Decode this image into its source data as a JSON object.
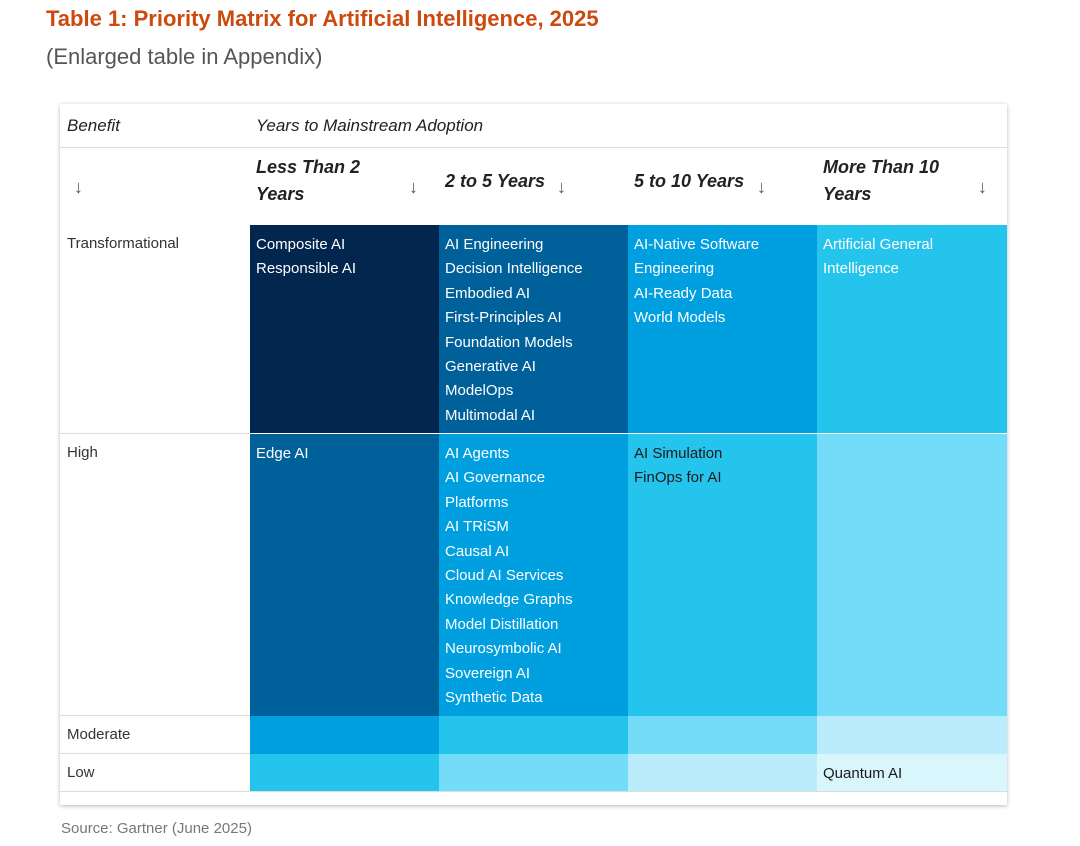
{
  "title": "Table 1: Priority Matrix for Artificial Intelligence, 2025",
  "subtitle": "(Enlarged table in Appendix)",
  "table": {
    "benefit_header": "Benefit",
    "years_header": "Years to Mainstream Adoption",
    "benefit_arrow": "↓",
    "columns": [
      {
        "label": "Less Than 2 Years",
        "arrow": "↓"
      },
      {
        "label": "2 to 5 Years",
        "arrow": "↓"
      },
      {
        "label": "5 to 10 Years",
        "arrow": "↓"
      },
      {
        "label": "More Than 10 Years",
        "arrow": "↓"
      }
    ],
    "rows": [
      {
        "label": "Transformational",
        "cells": [
          [
            "Composite AI",
            "Responsible AI"
          ],
          [
            "AI Engineering",
            "Decision Intelligence",
            "Embodied AI",
            "First-Principles AI",
            "Foundation Models",
            "Generative AI",
            "ModelOps",
            "Multimodal AI"
          ],
          [
            "AI-Native Software",
            "Engineering",
            "AI-Ready Data",
            "World Models"
          ],
          [
            "Artificial General",
            "Intelligence"
          ]
        ]
      },
      {
        "label": "High",
        "cells": [
          [
            "Edge AI"
          ],
          [
            "AI Agents",
            "AI Governance",
            "Platforms",
            "AI TRiSM",
            "Causal AI",
            "Cloud AI Services",
            "Knowledge Graphs",
            "Model Distillation",
            "Neurosymbolic AI",
            "Sovereign AI",
            "Synthetic Data"
          ],
          [
            "AI Simulation",
            "FinOps for AI"
          ],
          []
        ]
      },
      {
        "label": "Moderate",
        "cells": [
          [],
          [],
          [],
          []
        ]
      },
      {
        "label": "Low",
        "cells": [
          [],
          [],
          [],
          [
            "Quantum AI"
          ]
        ]
      }
    ],
    "colors": {
      "navy": "#03264f",
      "dark_blue": "#00609a",
      "medium_blue": "#009fe0",
      "cyan": "#25c4ed",
      "light_cyan": "#73dcf9",
      "pale_cyan": "#b9edfc",
      "palest_cyan": "#daf6fd"
    }
  },
  "source": "Source: Gartner (June 2025)"
}
